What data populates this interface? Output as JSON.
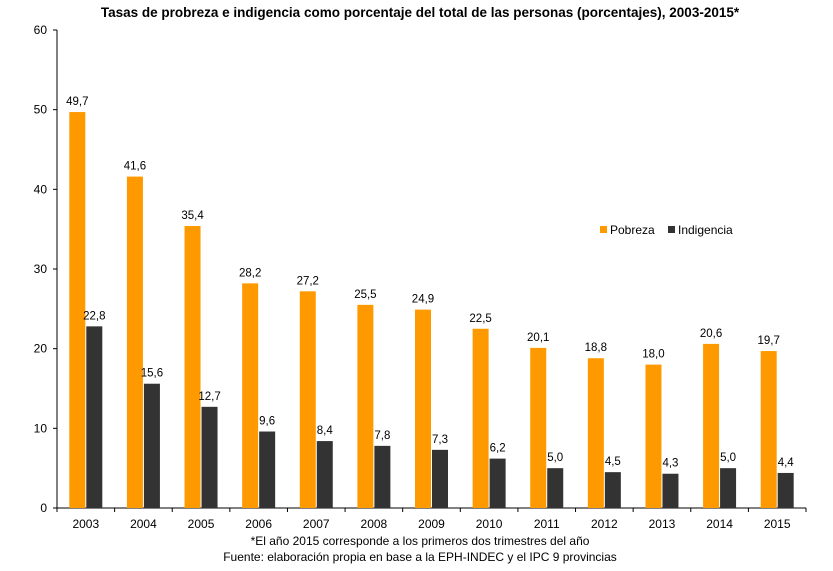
{
  "chart_data": {
    "type": "bar",
    "title": "Tasas de probreza e indigencia como porcentaje del total de las personas (porcentajes), 2003-2015*",
    "xlabel": "",
    "ylabel": "",
    "ylim": [
      0,
      60
    ],
    "yticks": [
      0,
      10,
      20,
      30,
      40,
      50,
      60
    ],
    "categories": [
      "2003",
      "2004",
      "2005",
      "2006",
      "2007",
      "2008",
      "2009",
      "2010",
      "2011",
      "2012",
      "2013",
      "2014",
      "2015"
    ],
    "series": [
      {
        "name": "Pobreza",
        "color": "#FF9900",
        "values": [
          49.7,
          41.6,
          35.4,
          28.2,
          27.2,
          25.5,
          24.9,
          22.5,
          20.1,
          18.8,
          18.0,
          20.6,
          19.7
        ],
        "labels": [
          "49,7",
          "41,6",
          "35,4",
          "28,2",
          "27,2",
          "25,5",
          "24,9",
          "22,5",
          "20,1",
          "18,8",
          "18,0",
          "20,6",
          "19,7"
        ]
      },
      {
        "name": "Indigencia",
        "color": "#333333",
        "values": [
          22.8,
          15.6,
          12.7,
          9.6,
          8.4,
          7.8,
          7.3,
          6.2,
          5.0,
          4.5,
          4.3,
          5.0,
          4.4
        ],
        "labels": [
          "22,8",
          "15,6",
          "12,7",
          "9,6",
          "8,4",
          "7,8",
          "7,3",
          "6,2",
          "5,0",
          "4,5",
          "4,3",
          "5,0",
          "4,4"
        ]
      }
    ],
    "legend_position": "right",
    "grid": false
  },
  "footnotes": {
    "note": "*El año 2015 corresponde a los primeros dos trimestres del año",
    "source": "Fuente: elaboración propia en base a la EPH-INDEC y el IPC 9 provincias"
  }
}
